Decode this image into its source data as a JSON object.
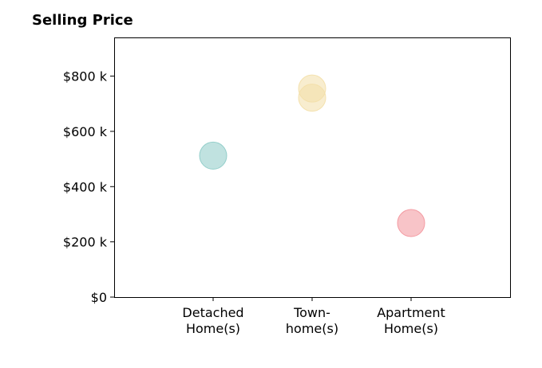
{
  "chart_data": {
    "type": "scatter",
    "title": "Selling Price",
    "xlabel": "",
    "ylabel": "",
    "categories": [
      "Detached\nHome(s)",
      "Town-\nhome(s)",
      "Apartment\nHome(s)"
    ],
    "ylim": [
      0,
      940000
    ],
    "yticks": [
      0,
      200000,
      400000,
      600000,
      800000
    ],
    "ytick_labels": [
      "$0",
      "$200 k",
      "$400 k",
      "$600 k",
      "$800 k"
    ],
    "grid": false,
    "points": [
      {
        "category_index": 0,
        "value": 512000,
        "color": "#8ccbc6"
      },
      {
        "category_index": 1,
        "value": 755000,
        "color": "#f3dfa7"
      },
      {
        "category_index": 1,
        "value": 722000,
        "color": "#f3dfa7"
      },
      {
        "category_index": 2,
        "value": 268000,
        "color": "#f3939b"
      }
    ],
    "point_opacity": 0.55
  }
}
